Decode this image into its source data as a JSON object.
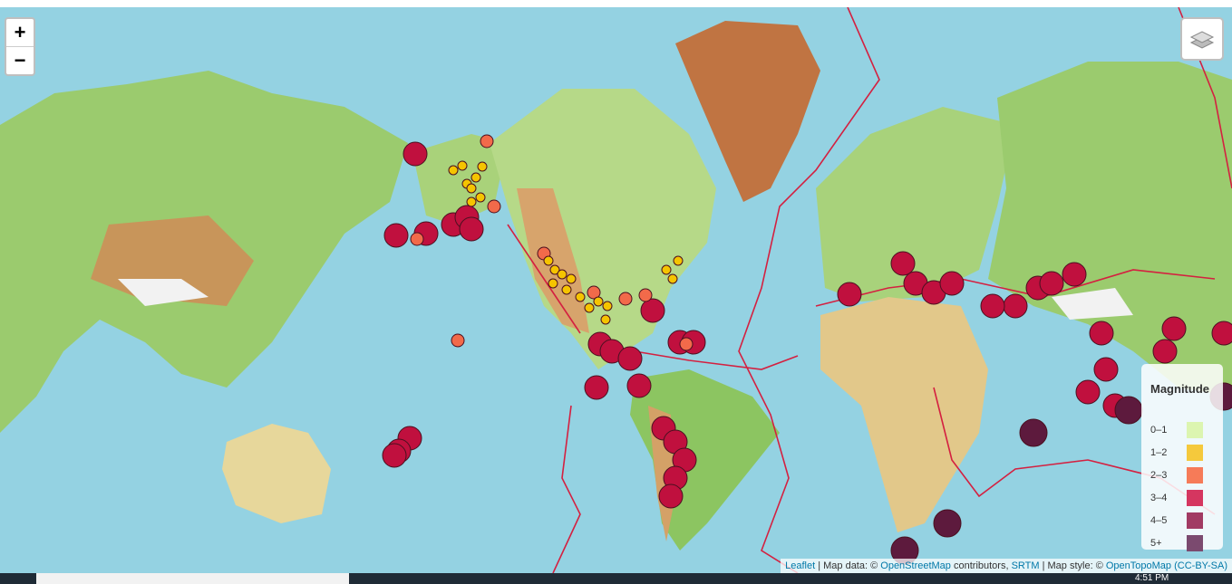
{
  "zoom_controls": {
    "zoom_in": "+",
    "zoom_out": "−"
  },
  "legend": {
    "title": "Magnitude",
    "items": [
      {
        "label": "0–1",
        "color": "#dcf5b0"
      },
      {
        "label": "1–2",
        "color": "#f5c93c"
      },
      {
        "label": "2–3",
        "color": "#f67b58"
      },
      {
        "label": "3–4",
        "color": "#d53660"
      },
      {
        "label": "4–5",
        "color": "#a13b63"
      },
      {
        "label": "5+",
        "color": "#7b4a6f"
      }
    ]
  },
  "attribution": {
    "leaflet": "Leaflet",
    "map_data": "| Map data: ©",
    "osm": "OpenStreetMap",
    "contributors": "contributors,",
    "srtm": "SRTM",
    "map_style": "| Map style: ©",
    "otm": "OpenTopoMap",
    "license": "(CC-BY-SA)"
  },
  "taskbar": {
    "time": "4:51 PM"
  }
}
